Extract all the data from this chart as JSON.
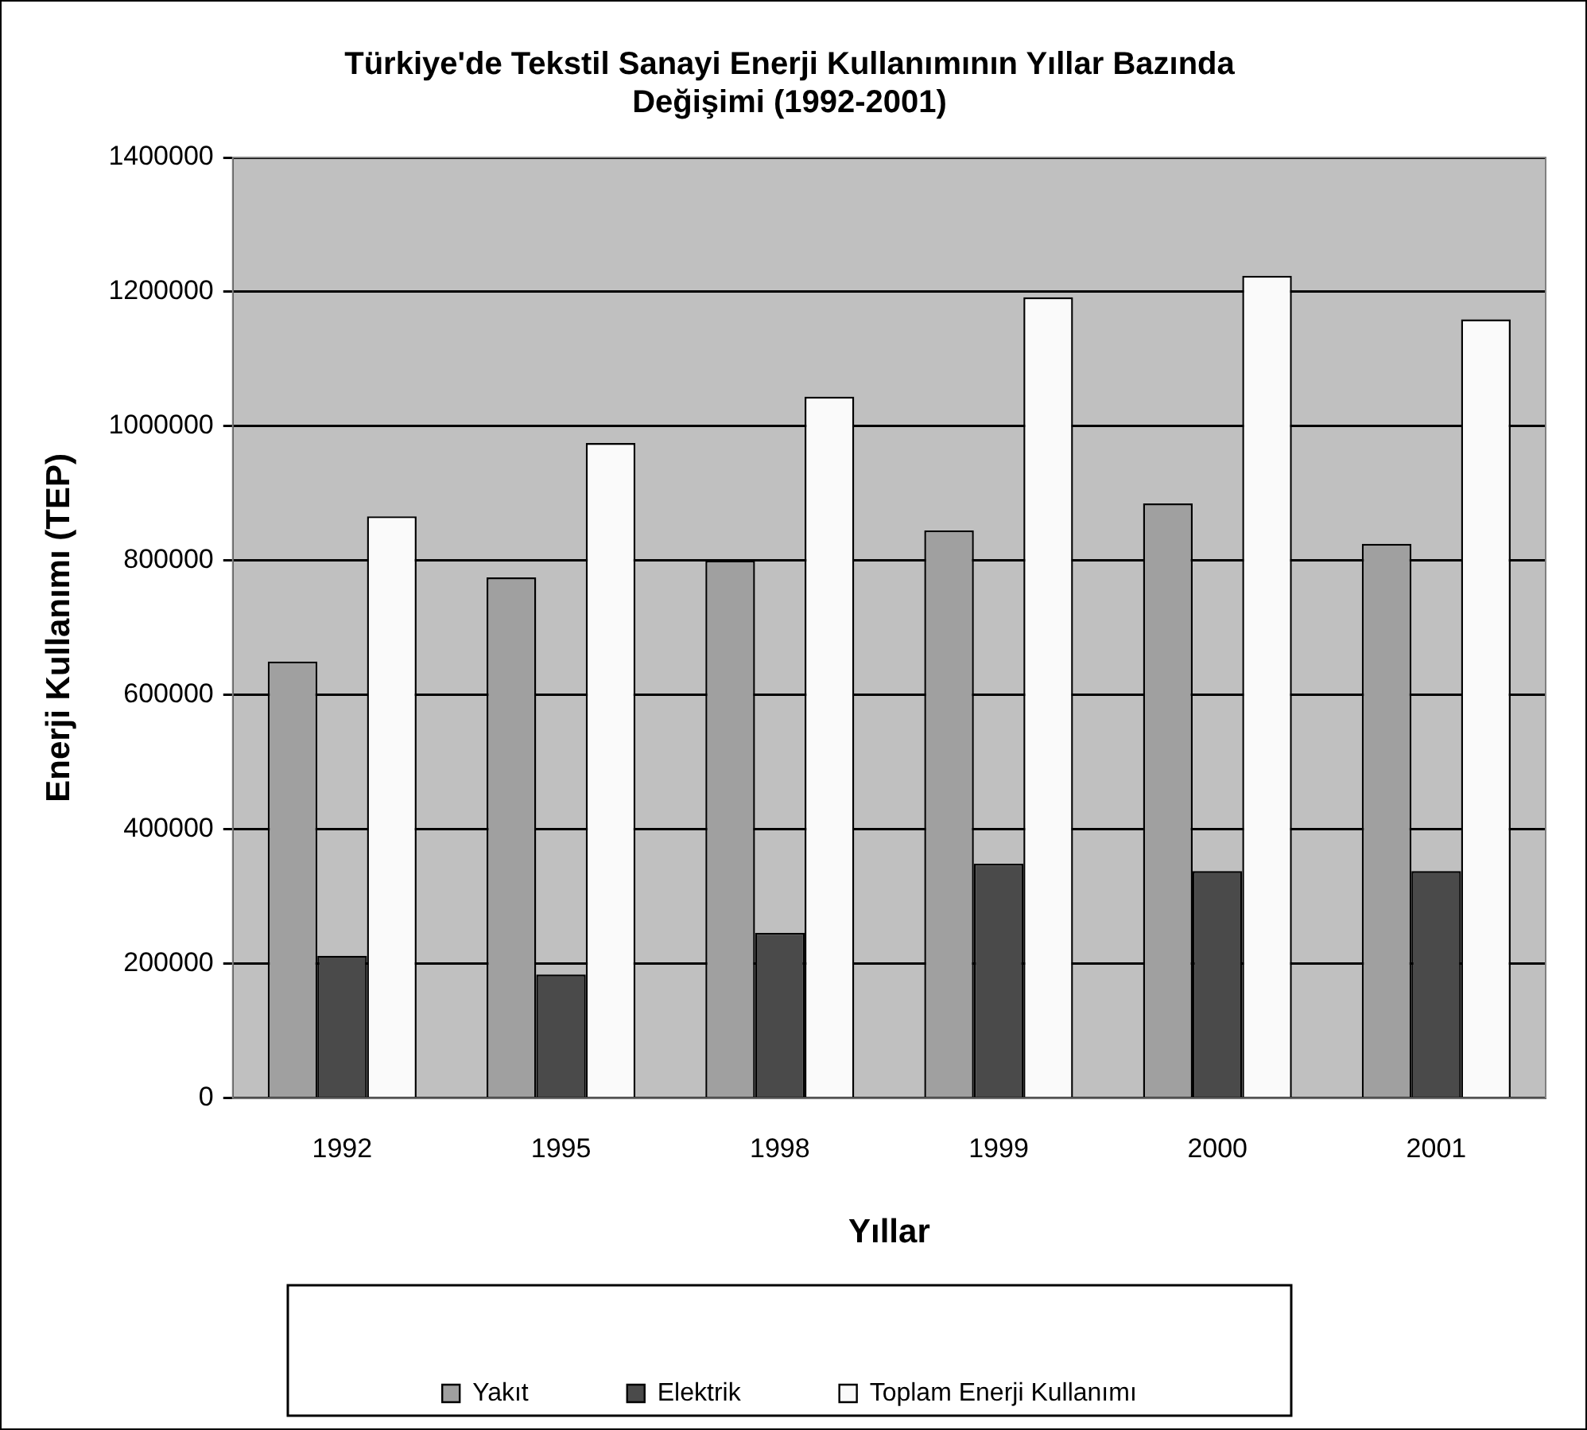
{
  "chart_data": {
    "type": "bar",
    "title": [
      "Türkiye'de Tekstil Sanayi Enerji Kullanımının Yıllar Bazında",
      "Değişimi (1992-2001)"
    ],
    "xlabel": "Yıllar",
    "ylabel": "Enerji Kullanımı (TEP)",
    "categories": [
      "1992",
      "1995",
      "1998",
      "1999",
      "2000",
      "2001"
    ],
    "series": [
      {
        "name": "Yakıt",
        "color": "#a0a0a0",
        "values": [
          650000,
          775000,
          800000,
          845000,
          885000,
          825000
        ]
      },
      {
        "name": "Elektrik",
        "color": "#4a4a4a",
        "values": [
          212000,
          184000,
          246000,
          349000,
          338000,
          338000
        ]
      },
      {
        "name": "Toplam Enerji Kullanımı",
        "color": "#fafafa",
        "values": [
          866000,
          975000,
          1044000,
          1192000,
          1224000,
          1159000
        ]
      }
    ],
    "ylim": [
      0,
      1400000
    ],
    "yticks": [
      0,
      200000,
      400000,
      600000,
      800000,
      1000000,
      1200000,
      1400000
    ],
    "grid": "y",
    "legend": "bottom"
  }
}
